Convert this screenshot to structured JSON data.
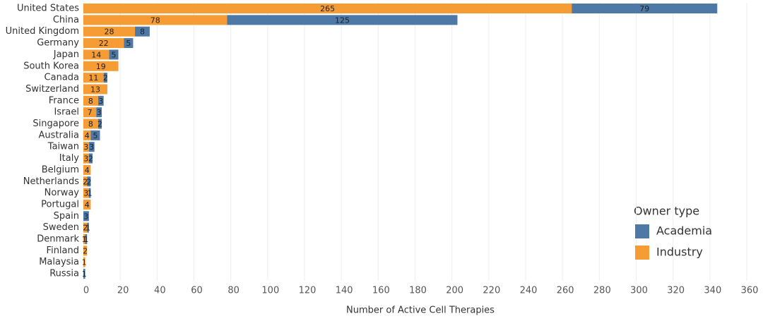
{
  "chart_data": {
    "type": "stacked-hbar",
    "x_label": "Number of Active Cell Therapies",
    "legend_title": "Owner type",
    "categories": [
      "United States",
      "China",
      "United Kingdom",
      "Germany",
      "Japan",
      "South Korea",
      "Canada",
      "Switzerland",
      "France",
      "Israel",
      "Singapore",
      "Australia",
      "Taiwan",
      "Italy",
      "Belgium",
      "Netherlands",
      "Norway",
      "Portugal",
      "Spain",
      "Sweden",
      "Denmark",
      "Finland",
      "Malaysia",
      "Russia"
    ],
    "series": [
      {
        "name": "Industry",
        "color": "#f59c34",
        "values": [
          265,
          78,
          28,
          22,
          14,
          19,
          11,
          13,
          8,
          7,
          8,
          4,
          3,
          3,
          4,
          2,
          3,
          4,
          null,
          2,
          1,
          2,
          1,
          null
        ]
      },
      {
        "name": "Academia",
        "color": "#4e79a7",
        "values": [
          79,
          125,
          8,
          5,
          5,
          null,
          2,
          null,
          3,
          3,
          2,
          5,
          3,
          2,
          null,
          2,
          1,
          null,
          3,
          1,
          1,
          null,
          null,
          1
        ]
      }
    ],
    "legend_order": [
      1,
      0
    ],
    "xlim": [
      0,
      360
    ],
    "xticks": [
      0,
      20,
      40,
      60,
      80,
      100,
      120,
      140,
      160,
      180,
      200,
      220,
      240,
      260,
      280,
      300,
      320,
      340,
      360
    ],
    "grid": true
  }
}
